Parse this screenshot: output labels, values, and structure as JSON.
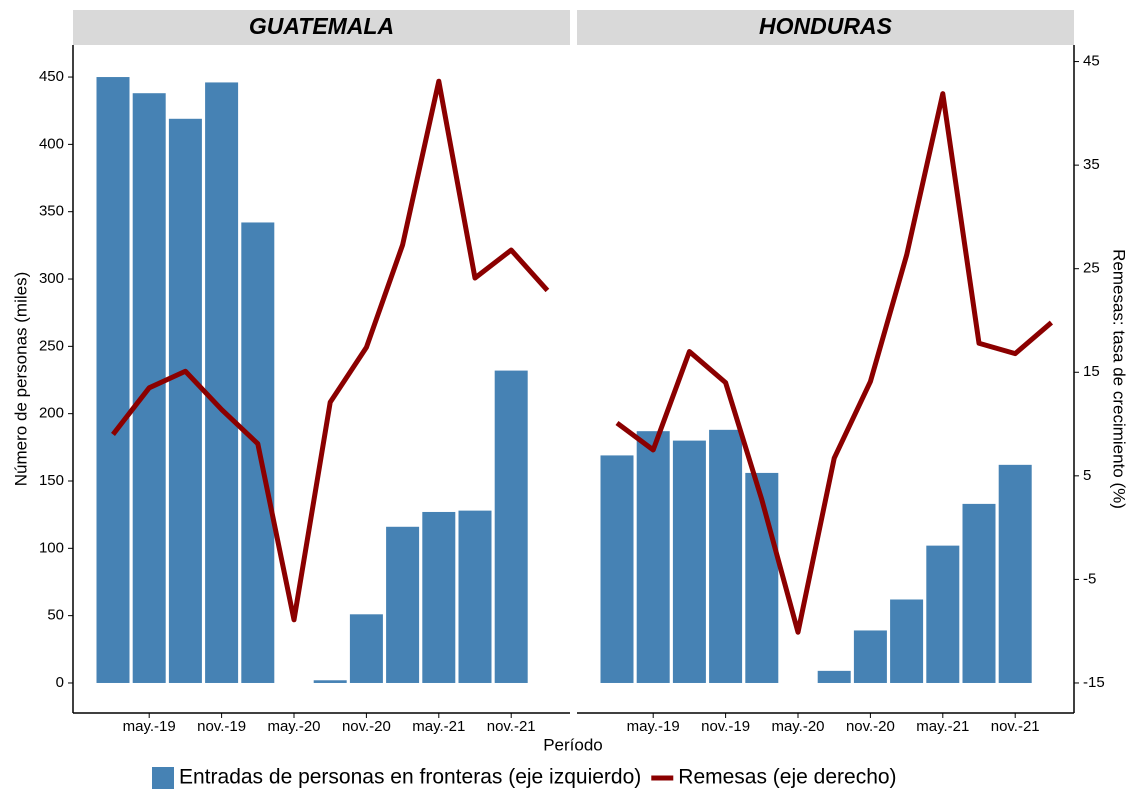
{
  "chart_data": {
    "type": "bar_line",
    "panels": [
      "GUATEMALA",
      "HONDURAS"
    ],
    "xlabel": "Período",
    "ylabel": "Número de personas (miles)",
    "y2label": "Remesas: tasa de crecimiento (%)",
    "categories": [
      null,
      "may.-19",
      null,
      "nov.-19",
      null,
      "may.-20",
      null,
      "nov.-20",
      null,
      "may.-21",
      null,
      "nov.-21",
      null
    ],
    "ylim": [
      -22.3,
      473.8
    ],
    "yticks": [
      0,
      50,
      100,
      150,
      200,
      250,
      300,
      350,
      400,
      450
    ],
    "y2lim": [
      -17.9,
      46.6
    ],
    "y2ticks": [
      -15,
      -5,
      5,
      15,
      25,
      35,
      45
    ],
    "legend": "bottom",
    "series": [
      {
        "name": "Entradas de personas en fronteras (eje izquierdo)",
        "color": "#4682b4",
        "type": "bar",
        "values": [
          [
            450,
            438,
            419,
            446,
            342,
            null,
            2,
            51,
            116,
            127,
            128,
            232,
            null
          ],
          [
            169,
            187,
            180,
            188,
            156,
            null,
            9,
            39,
            62,
            102,
            133,
            162,
            null
          ]
        ]
      },
      {
        "name": "Remesas (eje derecho)",
        "color": "#8b0000",
        "type": "line",
        "axis": "y2",
        "values": [
          [
            9.0,
            13.5,
            15.1,
            11.4,
            8.1,
            -8.9,
            12.1,
            17.4,
            27.3,
            43.1,
            24.1,
            26.8,
            22.9
          ],
          [
            10.1,
            7.5,
            17.0,
            14.0,
            2.7,
            -10.1,
            6.7,
            14.1,
            26.3,
            41.9,
            17.8,
            16.8,
            19.8
          ]
        ]
      }
    ]
  }
}
